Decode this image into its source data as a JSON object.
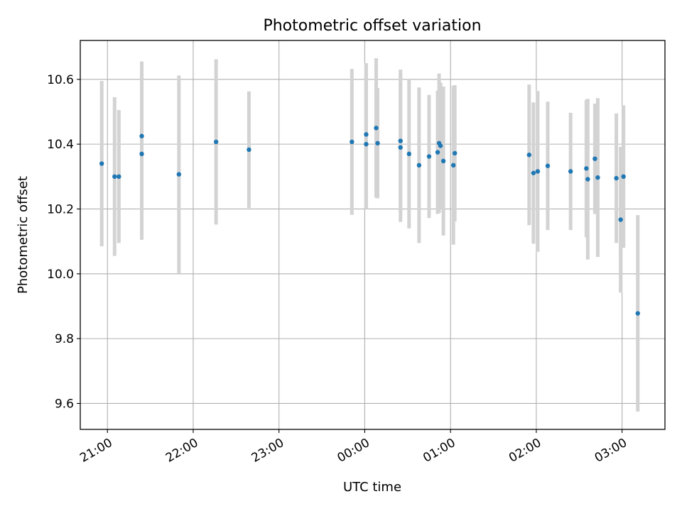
{
  "chart_data": {
    "type": "scatter",
    "title": "Photometric offset variation",
    "xlabel": "UTC time",
    "ylabel": "Photometric offset",
    "x_axis_type": "time",
    "x_tick_labels": [
      "21:00",
      "22:00",
      "23:00",
      "00:00",
      "01:00",
      "02:00",
      "03:00"
    ],
    "x_tick_times": [
      "2000-01-01T21:00",
      "2000-01-01T22:00",
      "2000-01-01T23:00",
      "2000-01-02T00:00",
      "2000-01-02T01:00",
      "2000-01-02T02:00",
      "2000-01-02T03:00"
    ],
    "xlim": [
      "2000-01-01T20:41",
      "2000-01-02T03:30"
    ],
    "y_ticks": [
      9.6,
      9.8,
      10.0,
      10.2,
      10.4,
      10.6
    ],
    "y_tick_labels": [
      "9.6",
      "9.8",
      "10.0",
      "10.2",
      "10.4",
      "10.6"
    ],
    "ylim": [
      9.52,
      10.72
    ],
    "grid": true,
    "marker_color": "#1f77b4",
    "errorbar_color": "#d3d3d3",
    "series": [
      {
        "x": [
          "2000-01-01T20:56",
          "2000-01-01T21:05",
          "2000-01-01T21:08",
          "2000-01-01T21:24",
          "2000-01-01T21:24",
          "2000-01-01T21:50",
          "2000-01-01T22:16",
          "2000-01-01T22:39",
          "2000-01-01T23:51",
          "2000-01-02T00:01",
          "2000-01-02T00:01",
          "2000-01-02T00:08",
          "2000-01-02T00:09",
          "2000-01-02T00:25",
          "2000-01-02T00:25",
          "2000-01-02T00:31",
          "2000-01-02T00:38",
          "2000-01-02T00:45",
          "2000-01-02T00:51",
          "2000-01-02T00:52",
          "2000-01-02T00:53",
          "2000-01-02T00:55",
          "2000-01-02T01:02",
          "2000-01-02T01:03",
          "2000-01-02T01:55",
          "2000-01-02T01:58",
          "2000-01-02T02:01",
          "2000-01-02T02:08",
          "2000-01-02T02:24",
          "2000-01-02T02:35",
          "2000-01-02T02:36",
          "2000-01-02T02:41",
          "2000-01-02T02:43",
          "2000-01-02T02:56",
          "2000-01-02T02:59",
          "2000-01-02T03:01",
          "2000-01-02T03:11"
        ],
        "y": [
          10.34,
          10.3,
          10.3,
          10.425,
          10.37,
          10.307,
          10.407,
          10.383,
          10.407,
          10.43,
          10.4,
          10.45,
          10.403,
          10.39,
          10.41,
          10.37,
          10.335,
          10.362,
          10.375,
          10.403,
          10.395,
          10.348,
          10.335,
          10.372,
          10.367,
          10.311,
          10.316,
          10.333,
          10.316,
          10.325,
          10.292,
          10.355,
          10.297,
          10.295,
          10.167,
          10.3,
          9.878
        ],
        "yerr": [
          0.255,
          0.245,
          0.205,
          0.23,
          0.265,
          0.305,
          0.255,
          0.18,
          0.225,
          0.22,
          0.2,
          0.215,
          0.17,
          0.23,
          0.22,
          0.23,
          0.24,
          0.19,
          0.19,
          0.215,
          0.195,
          0.23,
          0.245,
          0.21,
          0.217,
          0.218,
          0.248,
          0.198,
          0.181,
          0.212,
          0.248,
          0.17,
          0.245,
          0.2,
          0.225,
          0.22,
          0.303
        ]
      }
    ]
  }
}
